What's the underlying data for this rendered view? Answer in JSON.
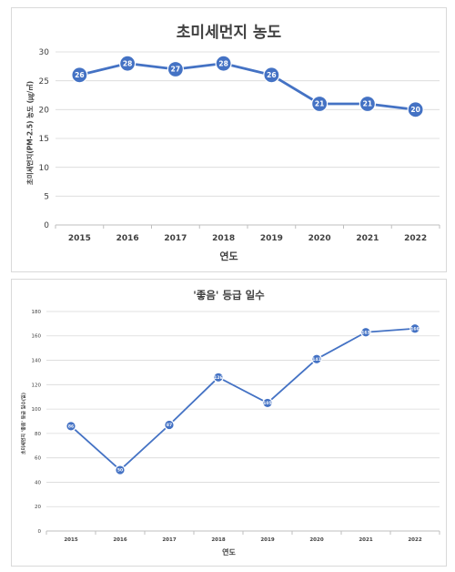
{
  "chart_data": [
    {
      "type": "line",
      "title": "초미세먼지 농도",
      "xlabel": "연도",
      "ylabel": "초미세먼지(PM-2.5) 농도 (㎍/㎥)",
      "categories": [
        "2015",
        "2016",
        "2017",
        "2018",
        "2019",
        "2020",
        "2021",
        "2022"
      ],
      "values": [
        26,
        28,
        27,
        28,
        26,
        21,
        21,
        20
      ],
      "data_labels": [
        "26",
        "28",
        "27",
        "28",
        "26",
        "21",
        "21",
        "20"
      ],
      "ylim": [
        0,
        30
      ],
      "yticks": [
        0,
        5,
        10,
        15,
        20,
        25,
        30
      ],
      "grid": true,
      "color": "#4472c4"
    },
    {
      "type": "line",
      "title": "'좋음' 등급 일수",
      "xlabel": "연도",
      "ylabel": "초미세먼지 '좋음' 등급 일수(일)",
      "categories": [
        "2015",
        "2016",
        "2017",
        "2018",
        "2019",
        "2020",
        "2021",
        "2022"
      ],
      "values": [
        86,
        50,
        87,
        126,
        105,
        141,
        163,
        166
      ],
      "data_labels": [
        "86",
        "50",
        "87",
        "126",
        "105",
        "141",
        "163",
        "166"
      ],
      "ylim": [
        0,
        180
      ],
      "yticks": [
        0,
        20,
        40,
        60,
        80,
        100,
        120,
        140,
        160,
        180
      ],
      "grid": true,
      "color": "#4472c4"
    }
  ]
}
